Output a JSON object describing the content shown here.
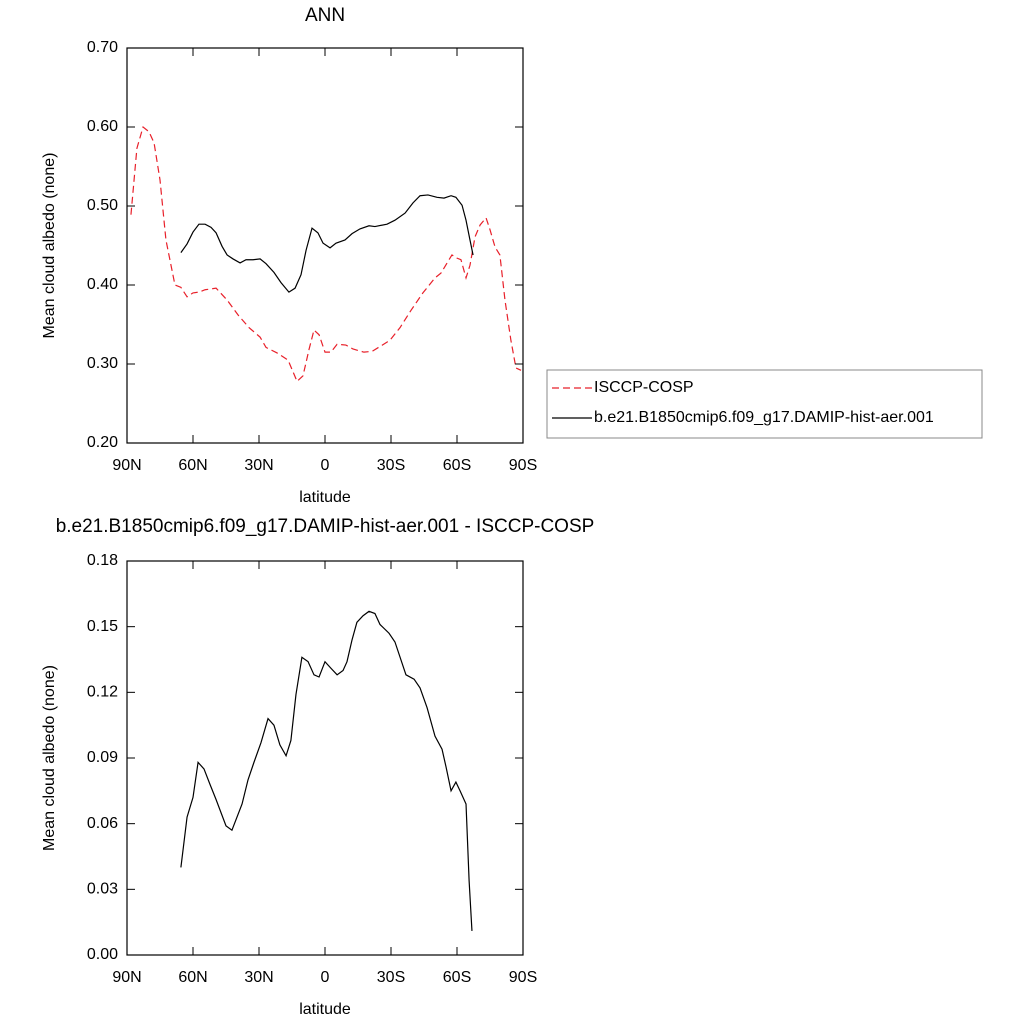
{
  "chart_data": [
    {
      "type": "line",
      "title": "ANN",
      "x_label": "latitude",
      "y_label": "Mean cloud albedo (none)",
      "xlim": [
        90,
        -90
      ],
      "xticks": [
        {
          "value": 90,
          "label": "90N"
        },
        {
          "value": 60,
          "label": "60N"
        },
        {
          "value": 30,
          "label": "30N"
        },
        0,
        {
          "value": -30,
          "label": "30S"
        },
        {
          "value": -60,
          "label": "60S"
        },
        {
          "value": -90,
          "label": "90S"
        }
      ],
      "ylim": [
        0.2,
        0.7
      ],
      "yticks": [
        {
          "value": 0.2,
          "label": "0.20"
        },
        {
          "value": 0.3,
          "label": "0.30"
        },
        {
          "value": 0.4,
          "label": "0.40"
        },
        {
          "value": 0.5,
          "label": "0.50"
        },
        {
          "value": 0.6,
          "label": "0.60"
        },
        {
          "value": 0.7,
          "label": "0.70"
        }
      ],
      "legend": "right",
      "series": [
        {
          "name": "ISCCP-COSP",
          "color": "#e8202a",
          "dash": true,
          "x": [
            88.2,
            85.5,
            82.7,
            80,
            77.7,
            75,
            72.3,
            68.2,
            65.5,
            62.7,
            60,
            57.3,
            54.5,
            49.5,
            44.5,
            39.5,
            34.5,
            29.5,
            26.8,
            21.8,
            16.8,
            12.7,
            10,
            7.3,
            5,
            2.7,
            0,
            -2.7,
            -5.5,
            -9.5,
            -12.7,
            -17.7,
            -21.4,
            -25.5,
            -29.5,
            -34.1,
            -39.1,
            -44.5,
            -50,
            -52.7,
            -55.5,
            -57.7,
            -60,
            -61.8,
            -64.1,
            -65.9,
            -68.2,
            -70.5,
            -73.2,
            -75,
            -77.3,
            -79.5,
            -81.8,
            -84.5,
            -86.8,
            -89.1
          ],
          "values": [
            0.489,
            0.573,
            0.6,
            0.594,
            0.58,
            0.533,
            0.457,
            0.4,
            0.397,
            0.385,
            0.39,
            0.391,
            0.394,
            0.396,
            0.381,
            0.362,
            0.346,
            0.334,
            0.321,
            0.314,
            0.305,
            0.278,
            0.285,
            0.318,
            0.343,
            0.337,
            0.315,
            0.315,
            0.325,
            0.324,
            0.319,
            0.315,
            0.316,
            0.323,
            0.33,
            0.346,
            0.368,
            0.39,
            0.409,
            0.415,
            0.428,
            0.438,
            0.434,
            0.432,
            0.409,
            0.425,
            0.461,
            0.476,
            0.485,
            0.47,
            0.448,
            0.438,
            0.381,
            0.33,
            0.295,
            0.292
          ]
        },
        {
          "name": "b.e21.B1850cmip6.f09_g17.DAMIP-hist-aer.001",
          "color": "#000000",
          "dash": false,
          "x": [
            65.5,
            62.7,
            60,
            57.3,
            54.5,
            51.8,
            49.5,
            46.8,
            44.5,
            41.8,
            38.6,
            35.9,
            32.7,
            29.5,
            26.8,
            23.2,
            20,
            16.4,
            13.6,
            10.9,
            8.6,
            5.9,
            3.2,
            0.9,
            -2.3,
            -5,
            -9.1,
            -12.3,
            -15.9,
            -20,
            -22.7,
            -28.2,
            -31.8,
            -36.4,
            -40,
            -43.2,
            -46.8,
            -50.9,
            -54.1,
            -57.3,
            -59.5,
            -62.3,
            -64.1,
            -65.9,
            -67.3
          ],
          "values": [
            0.441,
            0.452,
            0.467,
            0.477,
            0.477,
            0.473,
            0.466,
            0.449,
            0.438,
            0.433,
            0.428,
            0.432,
            0.432,
            0.433,
            0.427,
            0.416,
            0.403,
            0.391,
            0.396,
            0.413,
            0.444,
            0.472,
            0.466,
            0.453,
            0.447,
            0.453,
            0.457,
            0.465,
            0.471,
            0.475,
            0.474,
            0.477,
            0.482,
            0.491,
            0.504,
            0.513,
            0.514,
            0.511,
            0.51,
            0.513,
            0.511,
            0.501,
            0.482,
            0.457,
            0.438
          ]
        }
      ]
    },
    {
      "type": "line",
      "title": "b.e21.B1850cmip6.f09_g17.DAMIP-hist-aer.001 - ISCCP-COSP",
      "x_label": "latitude",
      "y_label": "Mean cloud albedo (none)",
      "xlim": [
        90,
        -90
      ],
      "xticks": [
        {
          "value": 90,
          "label": "90N"
        },
        {
          "value": 60,
          "label": "60N"
        },
        {
          "value": 30,
          "label": "30N"
        },
        0,
        {
          "value": -30,
          "label": "30S"
        },
        {
          "value": -60,
          "label": "60S"
        },
        {
          "value": -90,
          "label": "90S"
        }
      ],
      "ylim": [
        0,
        0.18
      ],
      "yticks": [
        {
          "value": 0,
          "label": "0.00"
        },
        {
          "value": 0.03,
          "label": "0.03"
        },
        {
          "value": 0.06,
          "label": "0.06"
        },
        {
          "value": 0.09,
          "label": "0.09"
        },
        {
          "value": 0.12,
          "label": "0.12"
        },
        {
          "value": 0.15,
          "label": "0.15"
        },
        {
          "value": 0.18,
          "label": "0.18"
        }
      ],
      "legend": false,
      "series": [
        {
          "color": "#000000",
          "dash": false,
          "x": [
            65.5,
            62.7,
            60,
            57.7,
            55,
            52.3,
            49.5,
            45,
            42.3,
            37.7,
            35,
            32.3,
            29.1,
            25.9,
            23.2,
            20.5,
            17.7,
            15.5,
            13.2,
            10.5,
            7.7,
            5,
            2.7,
            0,
            -2.7,
            -5.5,
            -8.2,
            -10,
            -12.3,
            -14.5,
            -17.3,
            -20,
            -22.7,
            -25,
            -29.1,
            -31.8,
            -36.8,
            -40.5,
            -43.2,
            -46.4,
            -50,
            -53.2,
            -55,
            -57.3,
            -59.5,
            -61.4,
            -64.1,
            -65.5,
            -66.8
          ],
          "values": [
            0.04,
            0.063,
            0.072,
            0.088,
            0.085,
            0.078,
            0.071,
            0.059,
            0.057,
            0.069,
            0.08,
            0.088,
            0.097,
            0.108,
            0.105,
            0.096,
            0.091,
            0.098,
            0.119,
            0.136,
            0.134,
            0.128,
            0.127,
            0.134,
            0.131,
            0.128,
            0.13,
            0.134,
            0.144,
            0.152,
            0.155,
            0.157,
            0.156,
            0.151,
            0.147,
            0.143,
            0.128,
            0.126,
            0.122,
            0.113,
            0.1,
            0.094,
            0.086,
            0.075,
            0.079,
            0.075,
            0.069,
            0.034,
            0.011
          ]
        }
      ]
    }
  ]
}
